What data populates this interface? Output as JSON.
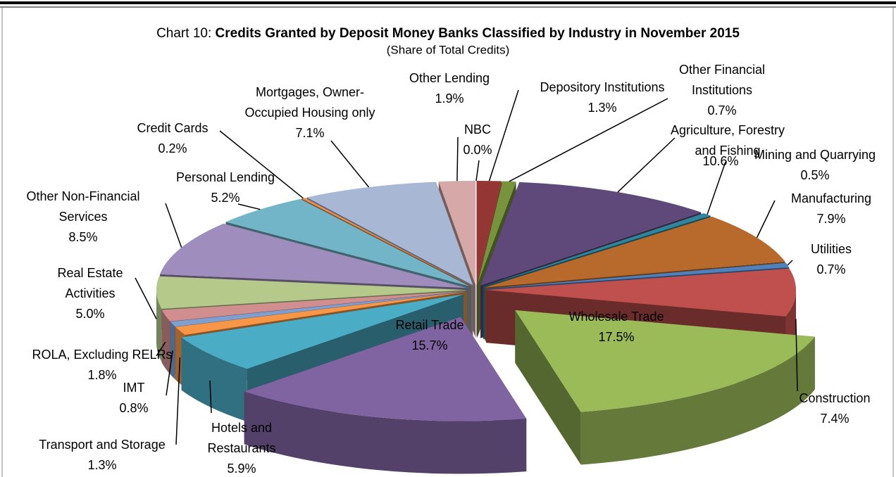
{
  "chart_data": {
    "type": "pie3d",
    "title_number": "Chart 10:",
    "title": "Credits Granted by Deposit Money Banks Classified by Industry in November 2015",
    "subtitle": "(Share of Total Credits)",
    "categories": [
      "Depository Institutions",
      "Other Financial Institutions",
      "Agriculture, Forestry and Fishing",
      "Mining and Quarrying",
      "Manufacturing",
      "Utilities",
      "Construction",
      "Wholesale Trade",
      "Retail Trade",
      "Hotels and Restaurants",
      "Transport and Storage",
      "IMT",
      "ROLA, Excluding RELRs",
      "Real Estate Activities",
      "Other Non-Financial Services",
      "Personal Lending",
      "Credit Cards",
      "Mortgages, Owner-Occupied Housing only",
      "Other Lending",
      "NBC"
    ],
    "values": [
      1.3,
      0.7,
      10.6,
      0.5,
      7.9,
      0.7,
      7.4,
      17.5,
      15.7,
      5.9,
      1.3,
      0.8,
      1.8,
      5.0,
      8.5,
      5.2,
      0.2,
      7.1,
      1.9,
      0.0
    ],
    "value_labels": [
      "1.3%",
      "0.7%",
      "10.6%",
      "0.5%",
      "7.9%",
      "0.7%",
      "7.4%",
      "17.5%",
      "15.7%",
      "5.9%",
      "1.3%",
      "0.8%",
      "1.8%",
      "5.0%",
      "8.5%",
      "5.2%",
      "0.2%",
      "7.1%",
      "1.9%",
      "0.0%"
    ],
    "colors": [
      "#943634",
      "#77933c",
      "#5f497a",
      "#31859c",
      "#b8692c",
      "#4f81bd",
      "#c0504d",
      "#9bbb59",
      "#8064a2",
      "#4bacc6",
      "#f79646",
      "#7f9fd0",
      "#d08f8e",
      "#b4c98a",
      "#9f8dbd",
      "#72b5c8",
      "#e58f52",
      "#a8b8d4",
      "#d6a9a8",
      "#9bbb59"
    ]
  }
}
